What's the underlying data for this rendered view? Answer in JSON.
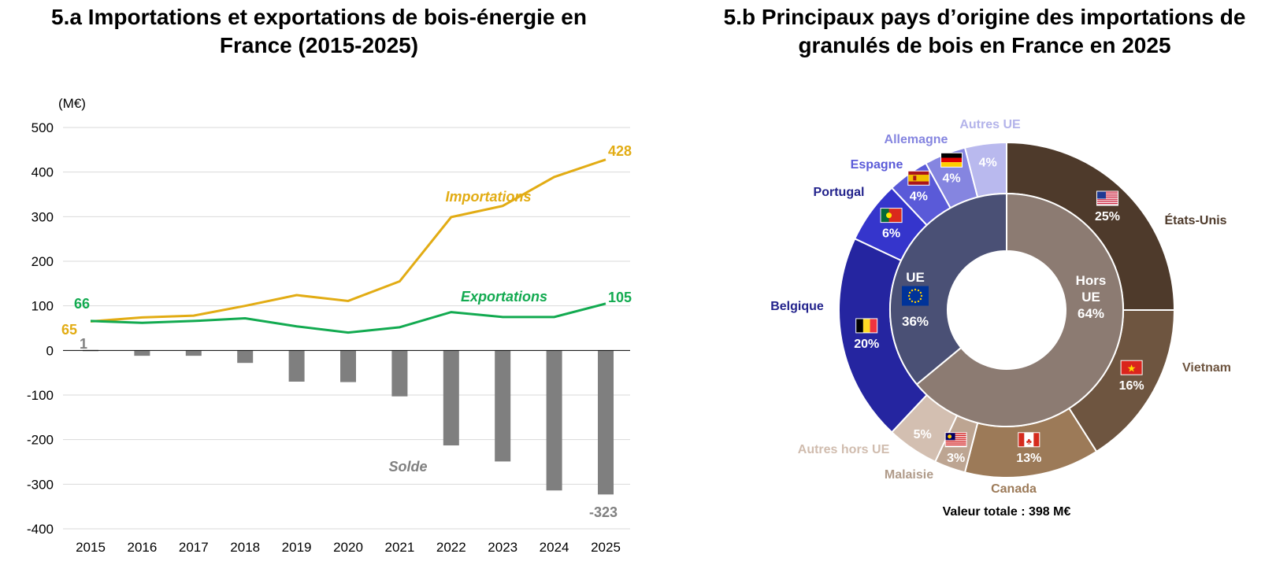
{
  "chart_data": [
    {
      "type": "line",
      "title": "5.a Importations et exportations de bois-énergie en France (2015-2025)",
      "unit_label": "(M€)",
      "ylim": [
        -400,
        500
      ],
      "yticks": [
        500,
        400,
        300,
        200,
        100,
        0,
        -100,
        -200,
        -300,
        -400
      ],
      "categories": [
        "2015",
        "2016",
        "2017",
        "2018",
        "2019",
        "2020",
        "2021",
        "2022",
        "2023",
        "2024",
        "2025"
      ],
      "grid": true,
      "series": [
        {
          "name": "Importations",
          "type": "line",
          "color": "#e2ac14",
          "values": [
            65,
            74,
            78,
            100,
            124,
            111,
            155,
            299,
            324,
            389,
            428
          ]
        },
        {
          "name": "Exportations",
          "type": "line",
          "color": "#12aa50",
          "values": [
            66,
            62,
            66,
            72,
            54,
            40,
            52,
            86,
            75,
            75,
            105
          ]
        },
        {
          "name": "Solde",
          "type": "bar",
          "color": "#7f7f7f",
          "values": [
            1,
            -12,
            -12,
            -28,
            -70,
            -71,
            -103,
            -213,
            -249,
            -314,
            -323
          ]
        }
      ],
      "data_labels": {
        "imp_first": "65",
        "imp_last": "428",
        "exp_first": "66",
        "exp_last": "105",
        "solde_first": "1",
        "solde_last": "-323"
      }
    },
    {
      "type": "pie",
      "title": "5.b Principaux pays d’origine des importations de granulés de bois en France en 2025",
      "total_label": "Valeur totale : 398 M€",
      "inner": [
        {
          "name": "Hors UE",
          "label": "64%",
          "value": 64,
          "color": "#8c7b72"
        },
        {
          "name": "UE",
          "label": "36%",
          "value": 36,
          "color": "#4a5075"
        }
      ],
      "outer": [
        {
          "name": "États-Unis",
          "label": "25%",
          "value": 25,
          "color": "#4e3a2b",
          "flag": "us-flag-icon"
        },
        {
          "name": "Vietnam",
          "label": "16%",
          "value": 16,
          "color": "#6e5540",
          "flag": "vietnam-flag-icon"
        },
        {
          "name": "Canada",
          "label": "13%",
          "value": 13,
          "color": "#9c7a58",
          "flag": "canada-flag-icon"
        },
        {
          "name": "Malaisie",
          "label": "3%",
          "value": 3,
          "color": "#bda592",
          "flag": "malaysia-flag-icon"
        },
        {
          "name": "Autres hors UE",
          "label": "5%",
          "value": 5,
          "color": "#d3bfb1",
          "flag": ""
        },
        {
          "name": "Belgique",
          "label": "20%",
          "value": 20,
          "color": "#2525a0",
          "flag": "belgium-flag-icon"
        },
        {
          "name": "Portugal",
          "label": "6%",
          "value": 6,
          "color": "#3535cc",
          "flag": "portugal-flag-icon"
        },
        {
          "name": "Espagne",
          "label": "4%",
          "value": 4,
          "color": "#5a5ad8",
          "flag": "spain-flag-icon"
        },
        {
          "name": "Allemagne",
          "label": "4%",
          "value": 4,
          "color": "#8585e0",
          "flag": "germany-flag-icon"
        },
        {
          "name": "Autres UE",
          "label": "4%",
          "value": 4,
          "color": "#b9b9ee",
          "flag": ""
        }
      ],
      "label_colors": {
        "États-Unis": "#4e3a2b",
        "Vietnam": "#6e5540",
        "Canada": "#9c7a58",
        "Malaisie": "#b09b8a",
        "Autres hors UE": "#d0bcae",
        "Belgique": "#23238c",
        "Portugal": "#23238c",
        "Espagne": "#5a5ad8",
        "Allemagne": "#8585e0",
        "Autres UE": "#b3b3ea"
      }
    }
  ]
}
